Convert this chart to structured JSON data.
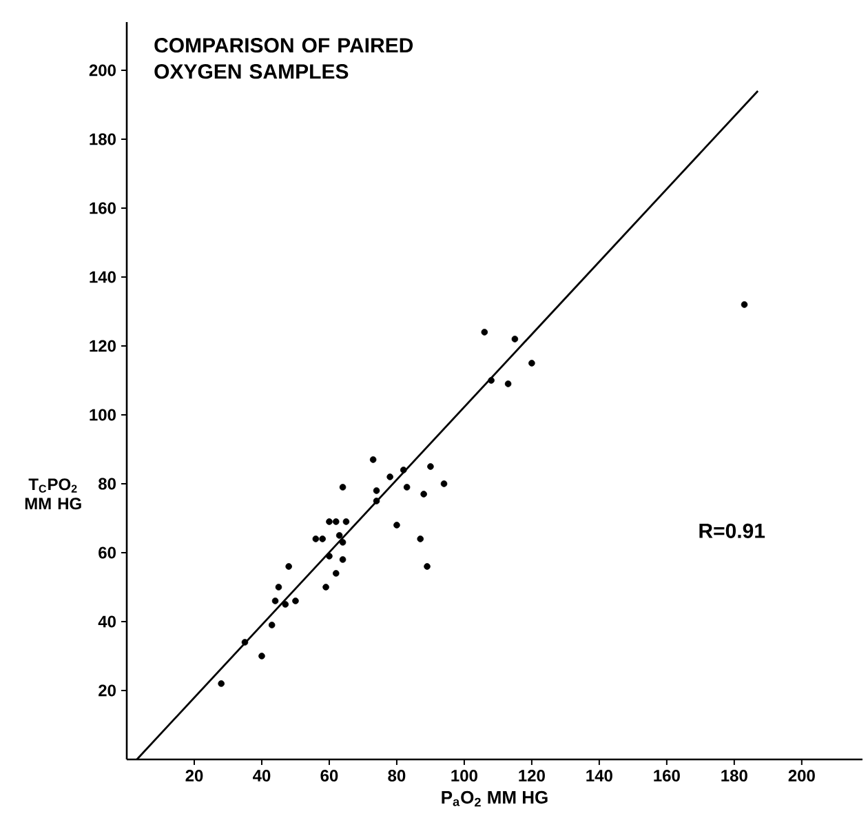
{
  "chart_data": {
    "type": "scatter",
    "title": "COMPARISON OF PAIRED OXYGEN SAMPLES",
    "xlabel": "P$_{a}$O$_{2}$ MM HG",
    "ylabel": "T$_{C}$PO$_{2}$ MM HG",
    "annotations": [
      "R=0.91"
    ],
    "xlim": [
      0,
      218
    ],
    "ylim": [
      0,
      214
    ],
    "xticks": [
      20,
      40,
      60,
      80,
      100,
      120,
      140,
      160,
      180,
      200
    ],
    "yticks": [
      20,
      40,
      60,
      80,
      100,
      120,
      140,
      160,
      180,
      200
    ],
    "grid": false,
    "series": [
      {
        "color": "#000000",
        "marker": "circle",
        "x": [
          28,
          35,
          40,
          43,
          44,
          45,
          47,
          48,
          50,
          56,
          58,
          59,
          60,
          60,
          62,
          62,
          63,
          64,
          64,
          65,
          64,
          73,
          74,
          74,
          78,
          80,
          82,
          83,
          87,
          88,
          89,
          90,
          94,
          106,
          115,
          108,
          113,
          120,
          183
        ],
        "values": [
          22,
          34,
          30,
          39,
          46,
          50,
          45,
          56,
          46,
          64,
          64,
          50,
          59,
          69,
          69,
          54,
          65,
          79,
          63,
          69,
          58,
          87,
          78,
          75,
          82,
          68,
          84,
          79,
          64,
          77,
          56,
          85,
          80,
          124,
          122,
          110,
          109,
          115,
          132
        ]
      },
      {
        "type": "line",
        "marker": "none",
        "color": "#000000",
        "x": [
          3,
          187
        ],
        "values": [
          0,
          194
        ]
      }
    ]
  }
}
